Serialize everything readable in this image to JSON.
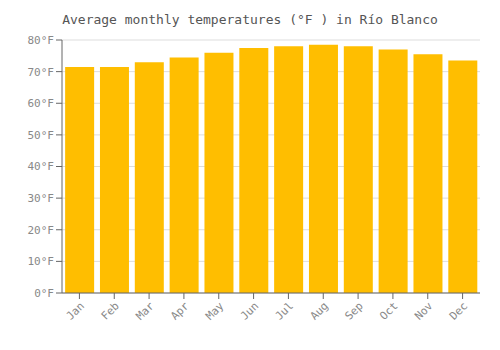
{
  "chart_data": {
    "type": "bar",
    "title": "Average monthly temperatures (°F ) in Río Blanco",
    "categories": [
      "Jan",
      "Feb",
      "Mar",
      "Apr",
      "May",
      "Jun",
      "Jul",
      "Aug",
      "Sep",
      "Oct",
      "Nov",
      "Dec"
    ],
    "values": [
      71.5,
      71.5,
      73.0,
      74.5,
      76.0,
      77.5,
      78.0,
      78.5,
      78.0,
      77.0,
      75.5,
      73.5
    ],
    "color": "#FFBE00",
    "ylim": [
      0,
      80
    ],
    "yticks": [
      {
        "value": 0,
        "label": "0°F"
      },
      {
        "value": 10,
        "label": "10°F"
      },
      {
        "value": 20,
        "label": "20°F"
      },
      {
        "value": 30,
        "label": "30°F"
      },
      {
        "value": 40,
        "label": "40°F"
      },
      {
        "value": 50,
        "label": "50°F"
      },
      {
        "value": 60,
        "label": "60°F"
      },
      {
        "value": 70,
        "label": "70°F"
      },
      {
        "value": 80,
        "label": "80°F"
      }
    ],
    "grid": true
  }
}
